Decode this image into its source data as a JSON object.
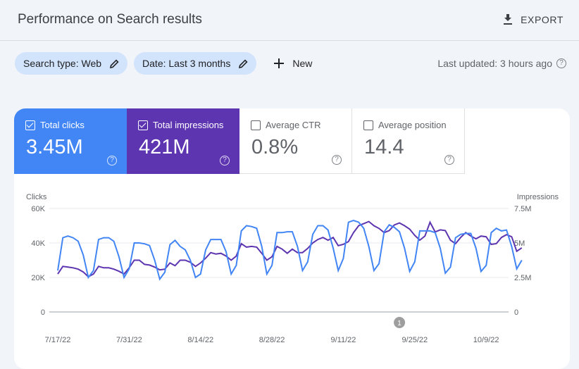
{
  "header": {
    "title": "Performance on Search results",
    "export_label": "EXPORT",
    "export_icon": "download-icon"
  },
  "filters": {
    "chips": [
      {
        "label": "Search type: Web",
        "icon": "pencil-icon"
      },
      {
        "label": "Date: Last 3 months",
        "icon": "pencil-icon"
      }
    ],
    "new_label": "New",
    "last_updated": "Last updated: 3 hours ago"
  },
  "metrics": [
    {
      "label": "Total clicks",
      "value": "3.45M",
      "checked": true,
      "color": "#4285f4"
    },
    {
      "label": "Total impressions",
      "value": "421M",
      "checked": true,
      "color": "#5e35b1"
    },
    {
      "label": "Average CTR",
      "value": "0.8%",
      "checked": false
    },
    {
      "label": "Average position",
      "value": "14.4",
      "checked": false
    }
  ],
  "chart_data": {
    "type": "line",
    "left_axis": {
      "label": "Clicks",
      "ticks": [
        "0",
        "20K",
        "40K",
        "60K"
      ],
      "range": [
        0,
        60000
      ]
    },
    "right_axis": {
      "label": "Impressions",
      "ticks": [
        "0",
        "2.5M",
        "5M",
        "7.5M"
      ],
      "range": [
        0,
        7500000
      ]
    },
    "x_ticks": [
      "7/17/22",
      "7/31/22",
      "8/14/22",
      "8/28/22",
      "9/11/22",
      "9/25/22",
      "10/9/22"
    ],
    "x_start": "2022-07-17",
    "grid": true,
    "annotation": "1",
    "annotation_date": "2022-09-22",
    "series": [
      {
        "name": "Clicks",
        "axis": "left",
        "color": "#4285f4",
        "values": [
          24000,
          43000,
          44000,
          43000,
          41000,
          33000,
          20000,
          24000,
          42000,
          43000,
          43000,
          41000,
          32000,
          20000,
          25000,
          40000,
          40000,
          39500,
          38500,
          30000,
          19000,
          23000,
          39000,
          41500,
          38000,
          36000,
          30000,
          20000,
          22000,
          36000,
          42000,
          42000,
          42000,
          35000,
          22000,
          27000,
          47000,
          50000,
          49500,
          48500,
          38000,
          22000,
          27000,
          46000,
          46000,
          46500,
          46500,
          38000,
          24000,
          29000,
          45000,
          50000,
          50000,
          47500,
          37000,
          24000,
          31000,
          52000,
          53000,
          52000,
          48500,
          38000,
          24000,
          28000,
          46500,
          50500,
          49000,
          46500,
          37000,
          23500,
          29000,
          47000,
          47000,
          47000,
          46000,
          37000,
          22500,
          26000,
          43000,
          45000,
          45500,
          45500,
          37000,
          23500,
          27000,
          46000,
          48500,
          47000,
          47500,
          38000,
          25000,
          30000
        ]
      },
      {
        "name": "Impressions",
        "axis": "right",
        "color": "#5e35b1",
        "values": [
          2750000,
          3300000,
          3250000,
          3200000,
          3100000,
          2900000,
          2550000,
          2750000,
          3300000,
          3200000,
          3200000,
          3100000,
          2950000,
          2750000,
          3200000,
          3750000,
          3750000,
          3450000,
          3400000,
          3250000,
          3050000,
          3100000,
          3550000,
          3350000,
          3750000,
          3750000,
          3600000,
          3300000,
          3550000,
          3900000,
          4300000,
          4200000,
          4250000,
          4050000,
          3750000,
          4050000,
          4950000,
          4700000,
          4750000,
          4700000,
          4250000,
          3750000,
          4000000,
          4750000,
          4550000,
          4250000,
          4550000,
          4300000,
          4300000,
          4600000,
          5000000,
          5250000,
          5400000,
          5200000,
          5400000,
          4800000,
          4900000,
          5100000,
          5750000,
          6250000,
          6400000,
          6550000,
          6250000,
          6050000,
          5750000,
          5900000,
          6300000,
          6450000,
          6250000,
          6000000,
          5550000,
          5200000,
          5500000,
          6500000,
          5800000,
          5950000,
          5900000,
          5200000,
          4950000,
          5400000,
          5750000,
          5500000,
          5300000,
          5500000,
          5450000,
          4900000,
          4950000,
          5400000,
          5600000,
          5450000,
          4400000,
          4650000
        ]
      }
    ]
  }
}
